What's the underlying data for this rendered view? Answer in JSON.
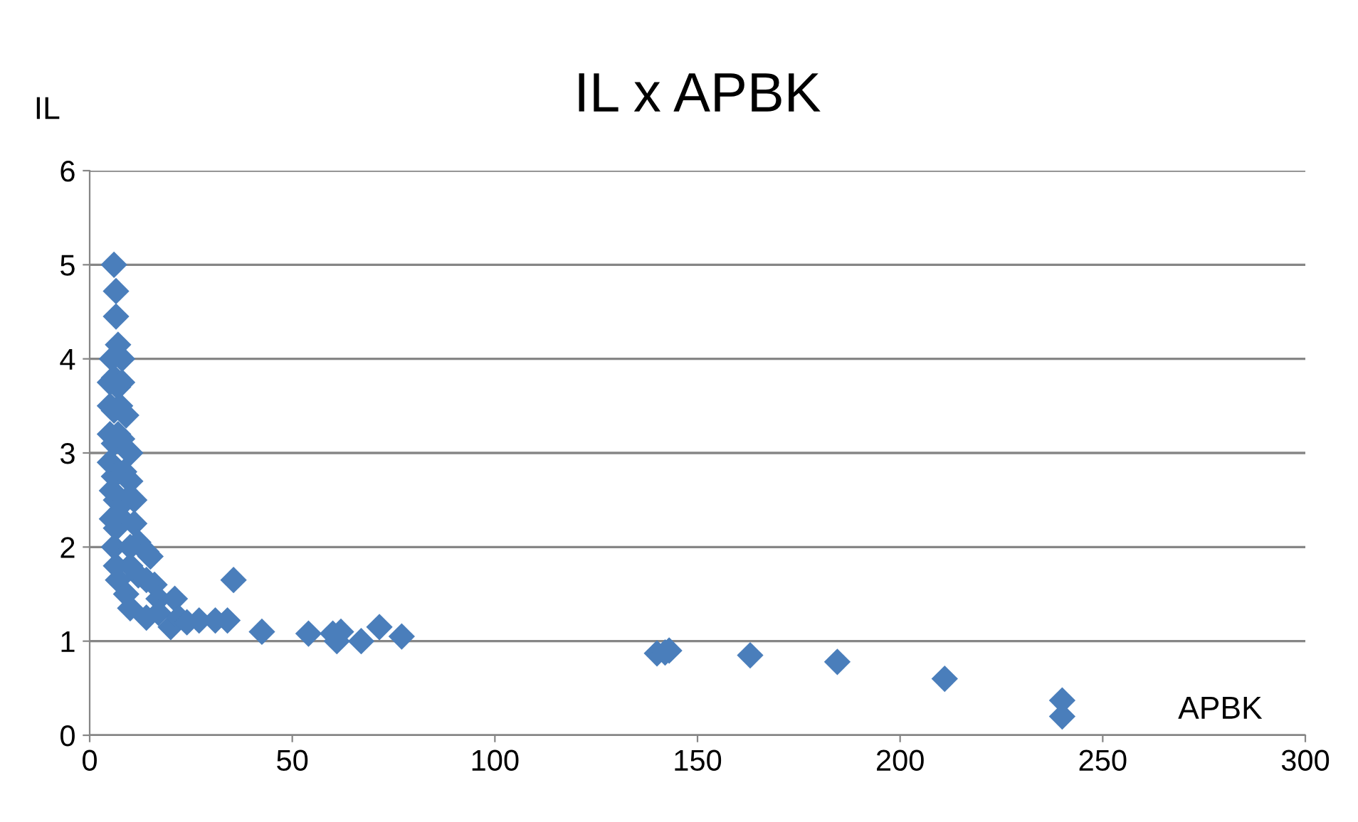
{
  "chart_data": {
    "type": "scatter",
    "title": "IL x APBK",
    "xlabel": "APBK",
    "ylabel": "IL",
    "series": [
      {
        "color": "#4a7ebb",
        "x": [
          6,
          6.5,
          6.5,
          7,
          5.5,
          8,
          5,
          6,
          7,
          8,
          5,
          6,
          7.5,
          9,
          5,
          6,
          7,
          8,
          10,
          5,
          6,
          8.5,
          10,
          5.5,
          6.5,
          9,
          11,
          5.5,
          6.5,
          8,
          11,
          6,
          10,
          12,
          14,
          6.5,
          10,
          12,
          15,
          7,
          14,
          16,
          9,
          17,
          10,
          14,
          17,
          21,
          20,
          22,
          24,
          27,
          31,
          34,
          35.5,
          42.5,
          54,
          60,
          61,
          62,
          67,
          71.5,
          77,
          140,
          142,
          143,
          163,
          184.5,
          211,
          240,
          240
        ],
        "values": [
          5.0,
          4.72,
          4.45,
          4.15,
          4.0,
          4.0,
          3.75,
          3.8,
          3.7,
          3.75,
          3.5,
          3.45,
          3.5,
          3.4,
          3.2,
          3.1,
          3.2,
          3.15,
          3.0,
          2.9,
          2.75,
          2.8,
          2.7,
          2.6,
          2.5,
          2.5,
          2.5,
          2.3,
          2.2,
          2.3,
          2.25,
          2.0,
          2.0,
          2.05,
          1.95,
          1.8,
          1.8,
          1.7,
          1.9,
          1.65,
          1.65,
          1.6,
          1.5,
          1.45,
          1.35,
          1.25,
          1.3,
          1.45,
          1.15,
          1.25,
          1.2,
          1.22,
          1.22,
          1.22,
          1.65,
          1.1,
          1.08,
          1.08,
          1.0,
          1.1,
          1.0,
          1.15,
          1.05,
          0.87,
          0.88,
          0.9,
          0.85,
          0.78,
          0.6,
          0.37,
          0.2
        ]
      }
    ],
    "marker": "diamond",
    "xlim": [
      0,
      300
    ],
    "xticks": [
      0,
      50,
      100,
      150,
      200,
      250,
      300
    ],
    "ylim": [
      0,
      6
    ],
    "yticks": [
      0,
      1,
      2,
      3,
      4,
      5,
      6
    ],
    "grid": "y",
    "legend": false
  }
}
